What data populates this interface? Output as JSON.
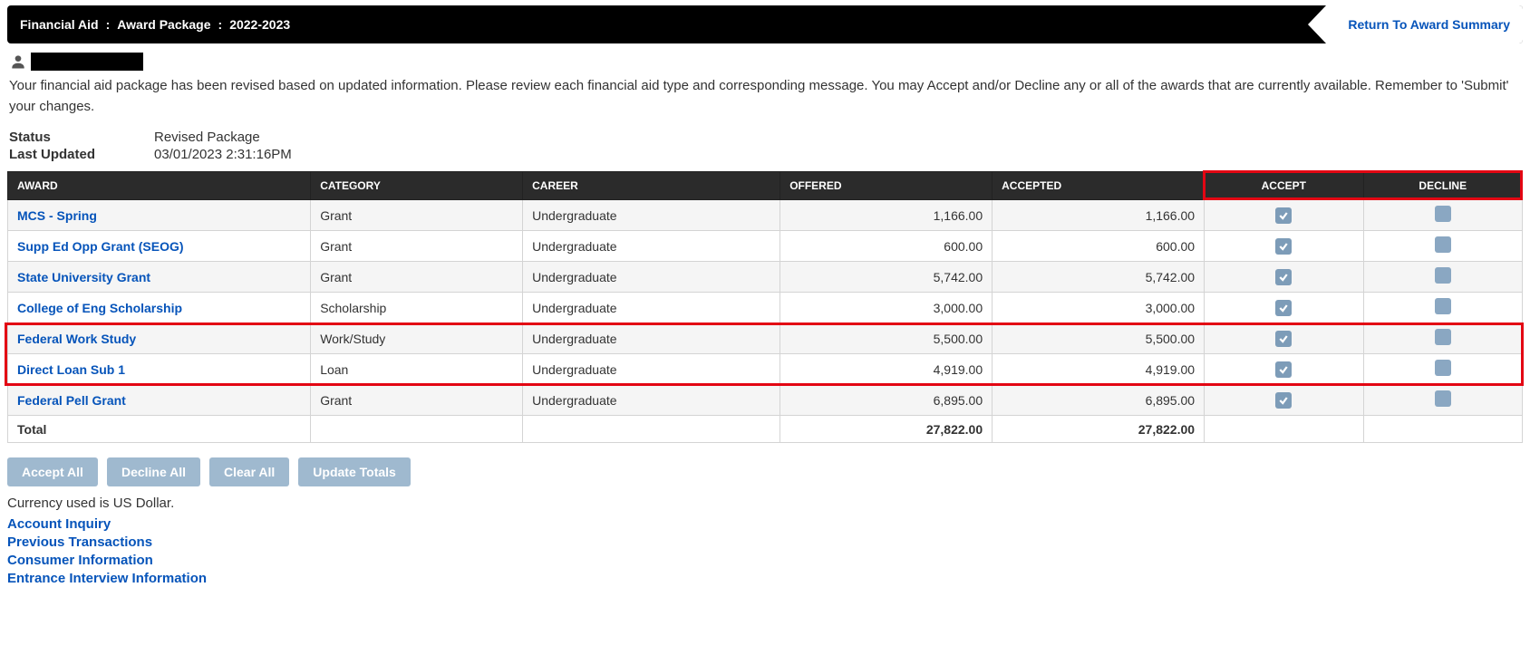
{
  "header": {
    "breadcrumb": [
      "Financial Aid",
      "Award Package",
      "2022-2023"
    ],
    "return_label": "Return To Award Summary"
  },
  "intro": "Your financial aid package has been revised based on updated information. Please review each financial aid type and corresponding message. You may Accept and/or Decline any or all of the awards that are currently available. Remember to 'Submit' your changes.",
  "meta": {
    "status_label": "Status",
    "status_value": "Revised Package",
    "updated_label": "Last Updated",
    "updated_value": "03/01/2023  2:31:16PM"
  },
  "columns": {
    "award": "Award",
    "category": "Category",
    "career": "Career",
    "offered": "Offered",
    "accepted": "Accepted",
    "accept": "Accept",
    "decline": "Decline"
  },
  "awards": [
    {
      "name": "MCS - Spring",
      "category": "Grant",
      "career": "Undergraduate",
      "offered": "1,166.00",
      "accepted": "1,166.00",
      "accept": true,
      "decline": false
    },
    {
      "name": "Supp Ed Opp Grant (SEOG)",
      "category": "Grant",
      "career": "Undergraduate",
      "offered": "600.00",
      "accepted": "600.00",
      "accept": true,
      "decline": false
    },
    {
      "name": "State University Grant",
      "category": "Grant",
      "career": "Undergraduate",
      "offered": "5,742.00",
      "accepted": "5,742.00",
      "accept": true,
      "decline": false
    },
    {
      "name": "College of Eng Scholarship",
      "category": "Scholarship",
      "career": "Undergraduate",
      "offered": "3,000.00",
      "accepted": "3,000.00",
      "accept": true,
      "decline": false
    },
    {
      "name": "Federal Work Study",
      "category": "Work/Study",
      "career": "Undergraduate",
      "offered": "5,500.00",
      "accepted": "5,500.00",
      "accept": true,
      "decline": false
    },
    {
      "name": "Direct Loan Sub 1",
      "category": "Loan",
      "career": "Undergraduate",
      "offered": "4,919.00",
      "accepted": "4,919.00",
      "accept": true,
      "decline": false
    },
    {
      "name": "Federal Pell Grant",
      "category": "Grant",
      "career": "Undergraduate",
      "offered": "6,895.00",
      "accepted": "6,895.00",
      "accept": true,
      "decline": false
    }
  ],
  "totals": {
    "label": "Total",
    "offered": "27,822.00",
    "accepted": "27,822.00"
  },
  "buttons": {
    "accept_all": "Accept All",
    "decline_all": "Decline All",
    "clear_all": "Clear All",
    "update_totals": "Update Totals"
  },
  "currency_note": "Currency used is US Dollar.",
  "footer_links": [
    "Account Inquiry",
    "Previous Transactions",
    "Consumer Information",
    "Entrance Interview Information"
  ],
  "highlight_rows": [
    4,
    5
  ],
  "colors": {
    "header_bg": "#000000",
    "link": "#0654ba",
    "button_bg": "#9fb9cf",
    "highlight": "#e30613",
    "checkbox": "#8aa7c2"
  }
}
